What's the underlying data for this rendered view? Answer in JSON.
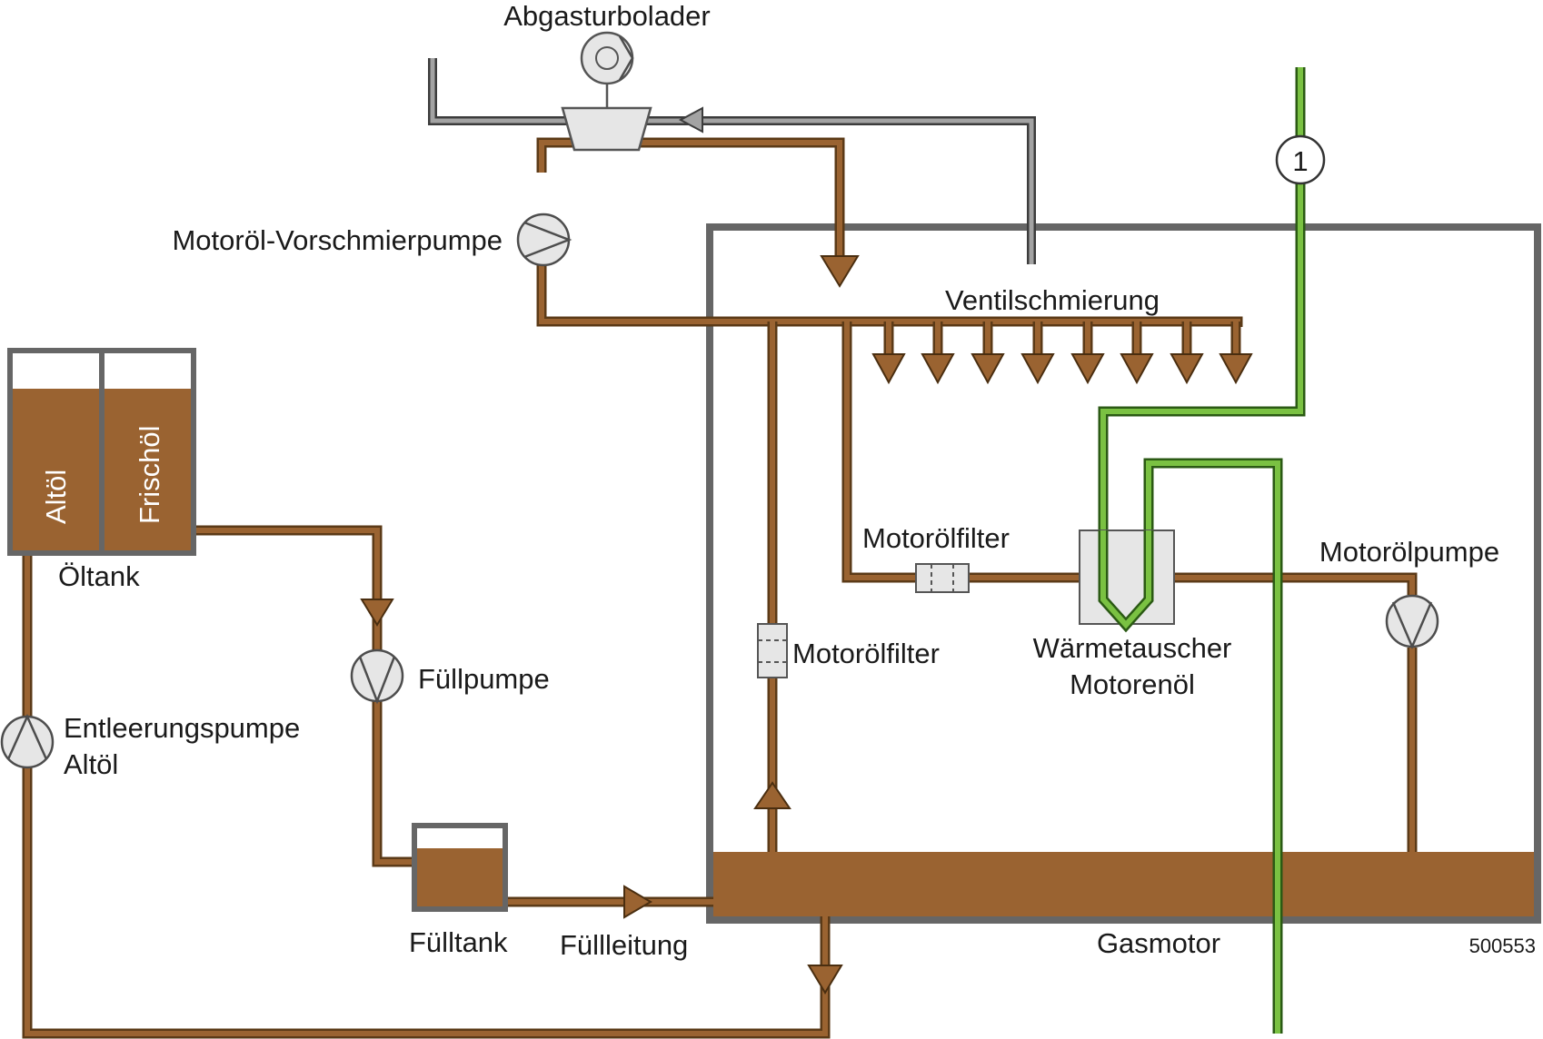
{
  "labels": {
    "turbo": "Abgasturbolader",
    "prelube_pump": "Motoröl-Vorschmierpumpe",
    "valve_lube": "Ventilschmierung",
    "oil_tank": "Öltank",
    "old_oil": "Altöl",
    "fresh_oil": "Frischöl",
    "fill_pump": "Füllpumpe",
    "drain_pump_line1": "Entleerungspumpe",
    "drain_pump_line2": "Altöl",
    "fill_tank": "Fülltank",
    "fill_line": "Füllleitung",
    "filter_upper": "Motorölfilter",
    "filter_vertical": "Motorölfilter",
    "heat_exchanger_line1": "Wärmetauscher",
    "heat_exchanger_line2": "Motorenöl",
    "engine_oil_pump": "Motorölpumpe",
    "gas_engine": "Gasmotor",
    "figure_number": "500553",
    "marker_1": "1"
  },
  "colors": {
    "oil": "#9a6331",
    "oil_outline": "#5b3a17",
    "exhaust": "#a3a3a3",
    "coolant": "#7ac142",
    "engine_frame": "#666666",
    "component_fill": "#e6e6e6"
  },
  "icons": [
    "pump-icon",
    "turbocharger-icon",
    "filter-icon",
    "heat-exchanger-icon",
    "flow-arrow-icon"
  ]
}
